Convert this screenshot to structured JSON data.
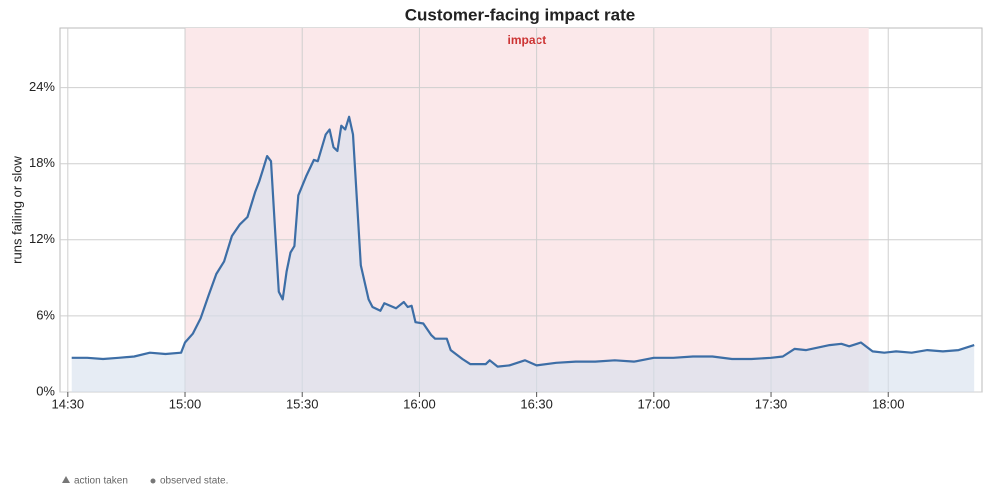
{
  "chart_data": {
    "type": "line",
    "title": "Customer-facing impact rate",
    "y_label": "runs failing or slow",
    "x": [
      "14:31",
      "14:35",
      "14:39",
      "14:43",
      "14:47",
      "14:51",
      "14:55",
      "14:59",
      "15:00",
      "15:02",
      "15:04",
      "15:06",
      "15:08",
      "15:10",
      "15:12",
      "15:14",
      "15:16",
      "15:18",
      "15:19",
      "15:20",
      "15:21",
      "15:22",
      "15:23",
      "15:24",
      "15:25",
      "15:26",
      "15:27",
      "15:28",
      "15:29",
      "15:31",
      "15:33",
      "15:34",
      "15:36",
      "15:37",
      "15:38",
      "15:39",
      "15:40",
      "15:41",
      "15:42",
      "15:43",
      "15:45",
      "15:47",
      "15:48",
      "15:50",
      "15:51",
      "15:54",
      "15:56",
      "15:57",
      "15:58",
      "15:59",
      "16:01",
      "16:03",
      "16:04",
      "16:07",
      "16:08",
      "16:11",
      "16:13",
      "16:17",
      "16:18",
      "16:20",
      "16:23",
      "16:27",
      "16:30",
      "16:35",
      "16:40",
      "16:45",
      "16:50",
      "16:55",
      "17:00",
      "17:05",
      "17:10",
      "17:15",
      "17:20",
      "17:25",
      "17:30",
      "17:33",
      "17:36",
      "17:39",
      "17:42",
      "17:45",
      "17:48",
      "17:50",
      "17:52",
      "17:53",
      "17:56",
      "17:59",
      "18:02",
      "18:06",
      "18:10",
      "18:14",
      "18:18",
      "18:22"
    ],
    "series": [
      {
        "name": "impact rate",
        "color": "#3d6ea6",
        "fill": "#d5e0ec",
        "values": [
          2.7,
          2.7,
          2.6,
          2.7,
          2.8,
          3.1,
          3.0,
          3.1,
          3.9,
          4.6,
          5.8,
          7.6,
          9.3,
          10.3,
          12.3,
          13.2,
          13.8,
          15.8,
          16.6,
          17.6,
          18.6,
          18.2,
          13.0,
          7.9,
          7.3,
          9.5,
          11.0,
          11.5,
          15.5,
          17.0,
          18.3,
          18.2,
          20.3,
          20.7,
          19.3,
          19.0,
          21.0,
          20.7,
          21.7,
          20.3,
          10.0,
          7.3,
          6.7,
          6.4,
          7.0,
          6.6,
          7.1,
          6.7,
          6.8,
          5.5,
          5.4,
          4.5,
          4.2,
          4.2,
          3.3,
          2.6,
          2.2,
          2.2,
          2.5,
          2.0,
          2.1,
          2.5,
          2.1,
          2.3,
          2.4,
          2.4,
          2.5,
          2.4,
          2.7,
          2.7,
          2.8,
          2.8,
          2.6,
          2.6,
          2.7,
          2.8,
          3.4,
          3.3,
          3.5,
          3.7,
          3.8,
          3.6,
          3.8,
          3.9,
          3.2,
          3.1,
          3.2,
          3.1,
          3.3,
          3.2,
          3.3,
          3.7
        ]
      }
    ],
    "band": {
      "label": "impact",
      "start": "15:00",
      "end": "17:55",
      "color": "#fbe8ea",
      "label_color": "#cc3333"
    },
    "xlim": [
      "14:28",
      "18:24"
    ],
    "xticks": [
      "14:30",
      "15:00",
      "15:30",
      "16:00",
      "16:30",
      "17:00",
      "17:30",
      "18:00"
    ],
    "ylim": [
      0,
      28.7
    ],
    "yticks": [
      {
        "value": 0,
        "label": "0%"
      },
      {
        "value": 6,
        "label": "6%"
      },
      {
        "value": 12,
        "label": "12%"
      },
      {
        "value": 18,
        "label": "18%"
      },
      {
        "value": 24,
        "label": "24%"
      }
    ],
    "grid": true
  },
  "footer": {
    "items": [
      "action taken",
      "observed state."
    ]
  }
}
